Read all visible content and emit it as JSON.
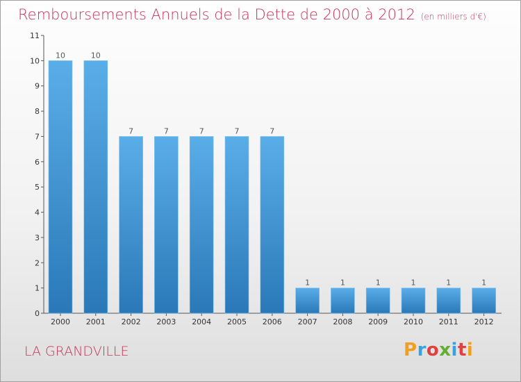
{
  "header": {
    "title": "Remboursements Annuels de la Dette de 2000 à 2012",
    "unit": "(en milliers d'€)"
  },
  "footer": {
    "commune": "LA GRANDVILLE",
    "logo": "Proxiti",
    "logo_colors": [
      "#f0a020",
      "#3aa0e0",
      "#e04040",
      "#60b030",
      "#3aa0e0",
      "#e04040",
      "#f0a020"
    ]
  },
  "chart_data": {
    "type": "bar",
    "title": "Remboursements Annuels de la Dette de 2000 à 2012",
    "categories": [
      "2000",
      "2001",
      "2002",
      "2003",
      "2004",
      "2005",
      "2006",
      "2007",
      "2008",
      "2009",
      "2010",
      "2011",
      "2012"
    ],
    "values": [
      10,
      10,
      7,
      7,
      7,
      7,
      7,
      1,
      1,
      1,
      1,
      1,
      1
    ],
    "data_labels": [
      "10",
      "10",
      "7",
      "7",
      "7",
      "7",
      "7",
      "1",
      "1",
      "1",
      "1",
      "1",
      "1"
    ],
    "y_ticks": [
      "0",
      "1",
      "2",
      "3",
      "4",
      "5",
      "6",
      "7",
      "8",
      "9",
      "10",
      "11"
    ],
    "ylim": [
      0,
      11
    ],
    "bar_color_top": "#5aaee8",
    "bar_color_bottom": "#2a78b8",
    "grid": false
  }
}
